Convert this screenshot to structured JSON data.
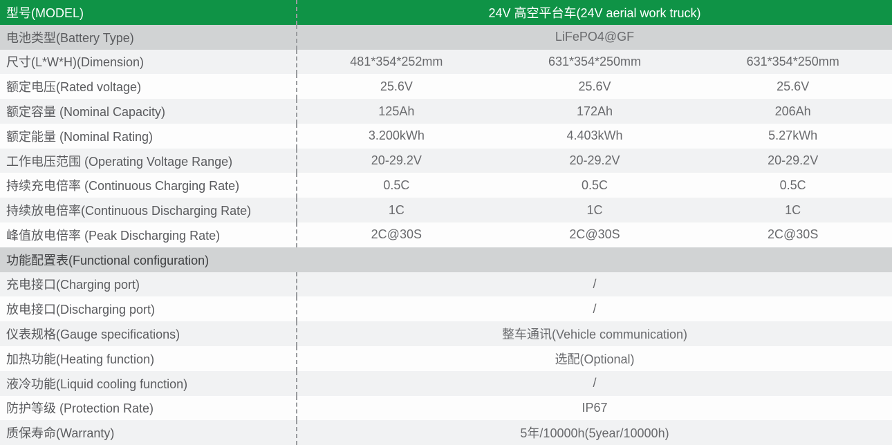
{
  "colors": {
    "header_green": "#0f9346",
    "dark_row_gray": "#d1d3d4",
    "light_row_gray": "#f1f2f3",
    "white_row": "#fdfdfd",
    "label_text": "#5a5b5e",
    "value_text": "#696a6d",
    "header_text": "#ffffff",
    "section_text": "#3f4042",
    "dashed_divider": "#9a9c9f"
  },
  "header": {
    "model_label": "型号(MODEL)",
    "model_value": "24V 高空平台车(24V aerial work truck)"
  },
  "rows": [
    {
      "label": "电池类型(Battery Type)",
      "values": [
        "LiFePO4@GF"
      ]
    },
    {
      "label": "尺寸(L*W*H)(Dimension)",
      "values": [
        "481*354*252mm",
        "631*354*250mm",
        "631*354*250mm"
      ]
    },
    {
      "label": "额定电压(Rated voltage)",
      "values": [
        "25.6V",
        "25.6V",
        "25.6V"
      ]
    },
    {
      "label": "额定容量 (Nominal Capacity)",
      "values": [
        "125Ah",
        "172Ah",
        "206Ah"
      ]
    },
    {
      "label": "额定能量 (Nominal Rating)",
      "values": [
        "3.200kWh",
        "4.403kWh",
        "5.27kWh"
      ]
    },
    {
      "label": "工作电压范围 (Operating Voltage Range)",
      "values": [
        "20-29.2V",
        "20-29.2V",
        "20-29.2V"
      ]
    },
    {
      "label": "持续充电倍率 (Continuous Charging Rate)",
      "values": [
        "0.5C",
        "0.5C",
        "0.5C"
      ]
    },
    {
      "label": "持续放电倍率(Continuous Discharging Rate)",
      "values": [
        "1C",
        "1C",
        "1C"
      ]
    },
    {
      "label": "峰值放电倍率 (Peak Discharging Rate)",
      "values": [
        "2C@30S",
        "2C@30S",
        "2C@30S"
      ]
    },
    {
      "label": "功能配置表(Functional configuration)",
      "values": []
    },
    {
      "label": "充电接口(Charging port)",
      "values": [
        "/"
      ]
    },
    {
      "label": "放电接口(Discharging port)",
      "values": [
        "/"
      ]
    },
    {
      "label": "仪表规格(Gauge specifications)",
      "values": [
        "整车通讯(Vehicle communication)"
      ]
    },
    {
      "label": "加热功能(Heating function)",
      "values": [
        "选配(Optional)"
      ]
    },
    {
      "label": "液冷功能(Liquid cooling function)",
      "values": [
        "/"
      ]
    },
    {
      "label": "防护等级 (Protection Rate)",
      "values": [
        "IP67"
      ]
    },
    {
      "label": "质保寿命(Warranty)",
      "values": [
        "5年/10000h(5year/10000h)"
      ]
    }
  ]
}
